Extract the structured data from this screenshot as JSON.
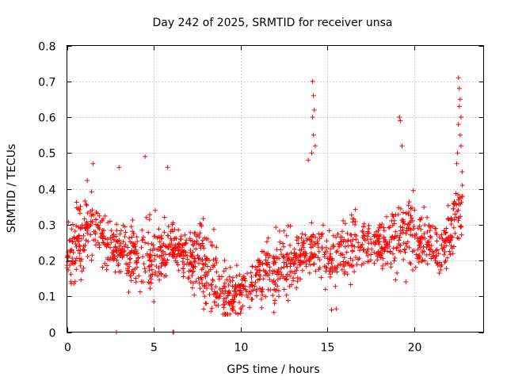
{
  "chart_data": {
    "type": "scatter",
    "title": "Day 242 of 2025, SRMTID for receiver unsa",
    "xlabel": "GPS time / hours",
    "ylabel": "SRMTID / TECUs",
    "xlim": [
      0,
      24
    ],
    "ylim": [
      0,
      0.8
    ],
    "x_ticks": [
      0,
      5,
      10,
      15,
      20
    ],
    "x_tick_labels": [
      "0",
      "5",
      "10",
      "15",
      "20"
    ],
    "y_ticks": [
      0,
      0.1,
      0.2,
      0.3,
      0.4,
      0.5,
      0.6,
      0.7,
      0.8
    ],
    "y_tick_labels": [
      "0",
      "0.1",
      "0.2",
      "0.3",
      "0.4",
      "0.5",
      "0.6",
      "0.7",
      "0.8"
    ],
    "grid": true,
    "marker": "+",
    "color": "#ff0000",
    "series": [
      {
        "name": "SRMTID",
        "trend": [
          [
            0.0,
            0.22
          ],
          [
            0.5,
            0.23
          ],
          [
            1.0,
            0.27
          ],
          [
            1.5,
            0.3
          ],
          [
            2.0,
            0.25
          ],
          [
            2.5,
            0.24
          ],
          [
            3.0,
            0.23
          ],
          [
            3.5,
            0.22
          ],
          [
            4.0,
            0.21
          ],
          [
            4.5,
            0.22
          ],
          [
            5.0,
            0.21
          ],
          [
            5.5,
            0.22
          ],
          [
            6.0,
            0.24
          ],
          [
            6.5,
            0.23
          ],
          [
            7.0,
            0.2
          ],
          [
            7.5,
            0.21
          ],
          [
            8.0,
            0.17
          ],
          [
            8.5,
            0.15
          ],
          [
            9.0,
            0.1
          ],
          [
            9.5,
            0.1
          ],
          [
            10.0,
            0.12
          ],
          [
            10.5,
            0.13
          ],
          [
            11.0,
            0.15
          ],
          [
            11.5,
            0.16
          ],
          [
            12.0,
            0.17
          ],
          [
            12.5,
            0.19
          ],
          [
            13.0,
            0.2
          ],
          [
            13.5,
            0.22
          ],
          [
            14.0,
            0.24
          ],
          [
            14.5,
            0.22
          ],
          [
            15.0,
            0.2
          ],
          [
            15.5,
            0.2
          ],
          [
            16.0,
            0.23
          ],
          [
            16.5,
            0.24
          ],
          [
            17.0,
            0.25
          ],
          [
            17.5,
            0.25
          ],
          [
            18.0,
            0.25
          ],
          [
            18.5,
            0.25
          ],
          [
            19.0,
            0.26
          ],
          [
            19.5,
            0.27
          ],
          [
            20.0,
            0.26
          ],
          [
            20.5,
            0.26
          ],
          [
            21.0,
            0.25
          ],
          [
            21.5,
            0.22
          ],
          [
            22.0,
            0.27
          ],
          [
            22.5,
            0.33
          ],
          [
            22.8,
            0.35
          ]
        ],
        "spikes": [
          [
            14.15,
            0.7
          ],
          [
            14.2,
            0.66
          ],
          [
            14.25,
            0.62
          ],
          [
            14.15,
            0.6
          ],
          [
            14.2,
            0.55
          ],
          [
            14.3,
            0.52
          ],
          [
            14.1,
            0.5
          ],
          [
            13.9,
            0.48
          ],
          [
            19.15,
            0.6
          ],
          [
            19.2,
            0.59
          ],
          [
            19.3,
            0.52
          ],
          [
            22.55,
            0.71
          ],
          [
            22.6,
            0.68
          ],
          [
            22.65,
            0.65
          ],
          [
            22.6,
            0.63
          ],
          [
            22.7,
            0.6
          ],
          [
            22.55,
            0.58
          ],
          [
            22.65,
            0.55
          ],
          [
            22.7,
            0.52
          ],
          [
            22.5,
            0.5
          ],
          [
            22.45,
            0.47
          ],
          [
            4.5,
            0.49
          ],
          [
            3.0,
            0.46
          ],
          [
            1.5,
            0.47
          ],
          [
            5.8,
            0.46
          ]
        ],
        "outliers": [
          [
            2.85,
            0.0
          ],
          [
            6.1,
            0.0
          ],
          [
            6.15,
            0.0
          ]
        ]
      }
    ]
  }
}
